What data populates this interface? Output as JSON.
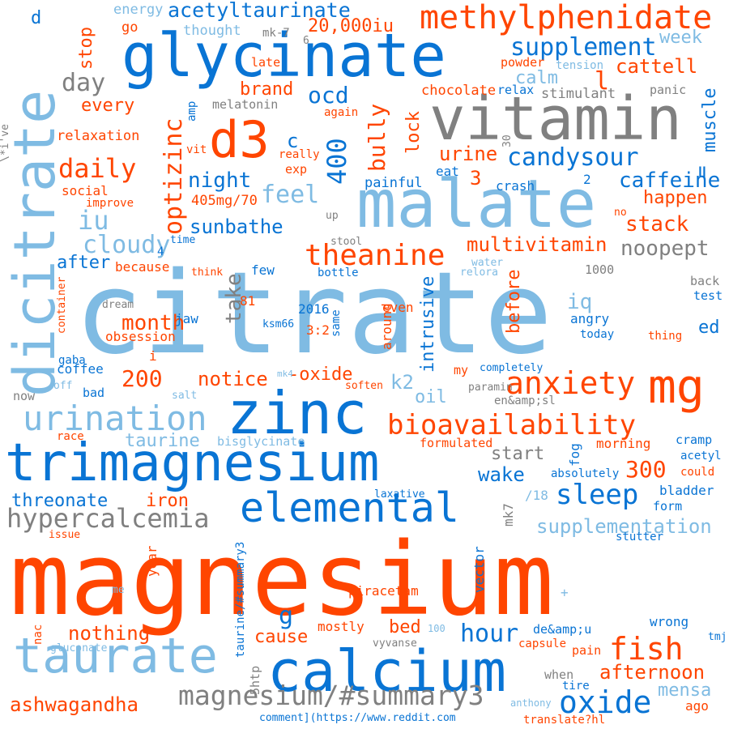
{
  "colors": {
    "background": "#ffffff",
    "orange": "#ff4500",
    "blue": "#0974d4",
    "light_blue": "#7fbbe3",
    "gray": "#808080"
  },
  "words": [
    {
      "text": "magnesium",
      "color": "orange"
    },
    {
      "text": "citrate",
      "color": "light_blue"
    },
    {
      "text": "glycinate",
      "color": "blue"
    },
    {
      "text": "vitamin",
      "color": "gray"
    },
    {
      "text": "malate",
      "color": "light_blue"
    },
    {
      "text": "dicitrate",
      "color": "light_blue"
    },
    {
      "text": "trimagnesium",
      "color": "blue"
    },
    {
      "text": "zinc",
      "color": "blue"
    },
    {
      "text": "calcium",
      "color": "blue"
    },
    {
      "text": "taurate",
      "color": "light_blue"
    },
    {
      "text": "elemental",
      "color": "blue"
    },
    {
      "text": "d3",
      "color": "orange"
    },
    {
      "text": "mg",
      "color": "orange"
    },
    {
      "text": "methylphenidate",
      "color": "orange"
    },
    {
      "text": "bioavailability",
      "color": "orange"
    },
    {
      "text": "urination",
      "color": "light_blue"
    },
    {
      "text": "anxiety",
      "color": "orange"
    },
    {
      "text": "hypercalcemia",
      "color": "gray"
    },
    {
      "text": "magnesium/#summary3",
      "color": "gray"
    },
    {
      "text": "supplement",
      "color": "blue"
    },
    {
      "text": "acetyltaurinate",
      "color": "blue"
    },
    {
      "text": "theanine",
      "color": "orange"
    },
    {
      "text": "candysour",
      "color": "blue"
    },
    {
      "text": "optizinc",
      "color": "orange"
    },
    {
      "text": "oxide",
      "color": "blue"
    },
    {
      "text": "fish",
      "color": "orange"
    },
    {
      "text": "sleep",
      "color": "blue"
    },
    {
      "text": "hour",
      "color": "blue"
    },
    {
      "text": "20,000iu",
      "color": "orange"
    },
    {
      "text": "day",
      "color": "gray"
    },
    {
      "text": "daily",
      "color": "orange"
    },
    {
      "text": "cloudy",
      "color": "light_blue"
    },
    {
      "text": "feel",
      "color": "light_blue"
    },
    {
      "text": "ocd",
      "color": "blue"
    },
    {
      "text": "400",
      "color": "blue"
    },
    {
      "text": "200",
      "color": "orange"
    },
    {
      "text": "300",
      "color": "orange"
    },
    {
      "text": "iu",
      "color": "light_blue"
    },
    {
      "text": "muscle",
      "color": "blue"
    },
    {
      "text": "caffeine",
      "color": "blue"
    },
    {
      "text": "cattell",
      "color": "orange"
    },
    {
      "text": "week",
      "color": "light_blue"
    },
    {
      "text": "stop",
      "color": "orange"
    },
    {
      "text": "brand",
      "color": "orange"
    },
    {
      "text": "calm",
      "color": "light_blue"
    },
    {
      "text": "bully",
      "color": "orange"
    },
    {
      "text": "lock",
      "color": "orange"
    },
    {
      "text": "urine",
      "color": "orange"
    },
    {
      "text": "multivitamin",
      "color": "orange"
    },
    {
      "text": "noopept",
      "color": "gray"
    },
    {
      "text": "stack",
      "color": "orange"
    },
    {
      "text": "happen",
      "color": "orange"
    },
    {
      "text": "night",
      "color": "blue"
    },
    {
      "text": "sunbathe",
      "color": "blue"
    },
    {
      "text": "after",
      "color": "blue"
    },
    {
      "text": "every",
      "color": "orange"
    },
    {
      "text": "month",
      "color": "orange"
    },
    {
      "text": "take",
      "color": "gray"
    },
    {
      "text": "notice",
      "color": "orange"
    },
    {
      "text": "-oxide",
      "color": "orange"
    },
    {
      "text": "intrusive",
      "color": "blue"
    },
    {
      "text": "before",
      "color": "orange"
    },
    {
      "text": "iq",
      "color": "light_blue"
    },
    {
      "text": "k2",
      "color": "light_blue"
    },
    {
      "text": "oil",
      "color": "light_blue"
    },
    {
      "text": "ed",
      "color": "blue"
    },
    {
      "text": "taurine",
      "color": "light_blue"
    },
    {
      "text": "start",
      "color": "gray"
    },
    {
      "text": "wake",
      "color": "blue"
    },
    {
      "text": "threonate",
      "color": "blue"
    },
    {
      "text": "iron",
      "color": "orange"
    },
    {
      "text": "supplementation",
      "color": "light_blue"
    },
    {
      "text": "nothing",
      "color": "orange"
    },
    {
      "text": "cause",
      "color": "orange"
    },
    {
      "text": "bed",
      "color": "orange"
    },
    {
      "text": "afternoon",
      "color": "orange"
    },
    {
      "text": "mensa",
      "color": "light_blue"
    },
    {
      "text": "ashwagandha",
      "color": "orange"
    },
    {
      "text": "g",
      "color": "blue"
    },
    {
      "text": "c",
      "color": "blue"
    },
    {
      "text": "d",
      "color": "blue"
    },
    {
      "text": "l",
      "color": "orange"
    },
    {
      "text": "3",
      "color": "orange"
    },
    {
      "text": "energy",
      "color": "light_blue"
    },
    {
      "text": "thought",
      "color": "light_blue"
    },
    {
      "text": "go",
      "color": "orange"
    },
    {
      "text": "mk-7",
      "color": "gray"
    },
    {
      "text": "late",
      "color": "orange"
    },
    {
      "text": "powder",
      "color": "orange"
    },
    {
      "text": "tension",
      "color": "light_blue"
    },
    {
      "text": "chocolate",
      "color": "orange"
    },
    {
      "text": "relax",
      "color": "blue"
    },
    {
      "text": "stimulant",
      "color": "gray"
    },
    {
      "text": "panic",
      "color": "gray"
    },
    {
      "text": "melatonin",
      "color": "gray"
    },
    {
      "text": "again",
      "color": "orange"
    },
    {
      "text": "amp",
      "color": "blue"
    },
    {
      "text": "relaxation",
      "color": "orange"
    },
    {
      "text": "vit",
      "color": "orange"
    },
    {
      "text": "really",
      "color": "orange"
    },
    {
      "text": "exp",
      "color": "orange"
    },
    {
      "text": "eat",
      "color": "blue"
    },
    {
      "text": "painful",
      "color": "blue"
    },
    {
      "text": "crash",
      "color": "blue"
    },
    {
      "text": "social",
      "color": "orange"
    },
    {
      "text": "improve",
      "color": "orange"
    },
    {
      "text": "405mg/70",
      "color": "orange"
    },
    {
      "text": "up",
      "color": "gray"
    },
    {
      "text": "no",
      "color": "orange"
    },
    {
      "text": "time",
      "color": "blue"
    },
    {
      "text": "few",
      "color": "blue"
    },
    {
      "text": "stool",
      "color": "gray"
    },
    {
      "text": "because",
      "color": "orange"
    },
    {
      "text": "think",
      "color": "orange"
    },
    {
      "text": "bottle",
      "color": "blue"
    },
    {
      "text": "water",
      "color": "light_blue"
    },
    {
      "text": "relora",
      "color": "light_blue"
    },
    {
      "text": "1000",
      "color": "gray"
    },
    {
      "text": "back",
      "color": "gray"
    },
    {
      "text": "test",
      "color": "blue"
    },
    {
      "text": "dream",
      "color": "gray"
    },
    {
      "text": "81",
      "color": "orange"
    },
    {
      "text": "2016",
      "color": "blue"
    },
    {
      "text": "ksm66",
      "color": "blue"
    },
    {
      "text": "3:2",
      "color": "orange"
    },
    {
      "text": "obsession",
      "color": "orange"
    },
    {
      "text": "jaw",
      "color": "blue"
    },
    {
      "text": "even",
      "color": "orange"
    },
    {
      "text": "angry",
      "color": "blue"
    },
    {
      "text": "today",
      "color": "blue"
    },
    {
      "text": "thing",
      "color": "orange"
    },
    {
      "text": "coffee",
      "color": "blue"
    },
    {
      "text": "mk4",
      "color": "light_blue"
    },
    {
      "text": "my",
      "color": "orange"
    },
    {
      "text": "completely",
      "color": "blue"
    },
    {
      "text": "gaba",
      "color": "blue"
    },
    {
      "text": "off",
      "color": "light_blue"
    },
    {
      "text": "bad",
      "color": "blue"
    },
    {
      "text": "salt",
      "color": "light_blue"
    },
    {
      "text": "soften",
      "color": "orange"
    },
    {
      "text": "now",
      "color": "gray"
    },
    {
      "text": "paramin",
      "color": "gray"
    },
    {
      "text": "en&amp;sl",
      "color": "gray"
    },
    {
      "text": "race",
      "color": "orange"
    },
    {
      "text": "formulated",
      "color": "orange"
    },
    {
      "text": "bisglycinate",
      "color": "light_blue"
    },
    {
      "text": "morning",
      "color": "orange"
    },
    {
      "text": "cramp",
      "color": "blue"
    },
    {
      "text": "absolutely",
      "color": "blue"
    },
    {
      "text": "could",
      "color": "orange"
    },
    {
      "text": "acetyl",
      "color": "blue"
    },
    {
      "text": "bladder",
      "color": "blue"
    },
    {
      "text": "/18",
      "color": "light_blue"
    },
    {
      "text": "form",
      "color": "blue"
    },
    {
      "text": "laxative",
      "color": "blue"
    },
    {
      "text": "issue",
      "color": "orange"
    },
    {
      "text": "stutter",
      "color": "blue"
    },
    {
      "text": "me",
      "color": "light_blue"
    },
    {
      "text": "piracetam",
      "color": "orange"
    },
    {
      "text": "+",
      "color": "light_blue"
    },
    {
      "text": "mostly",
      "color": "orange"
    },
    {
      "text": "wrong",
      "color": "blue"
    },
    {
      "text": "nac",
      "color": "orange"
    },
    {
      "text": "100",
      "color": "light_blue"
    },
    {
      "text": "de&amp;u",
      "color": "blue"
    },
    {
      "text": "tmj",
      "color": "blue"
    },
    {
      "text": "gluconate",
      "color": "light_blue"
    },
    {
      "text": "vyvanse",
      "color": "gray"
    },
    {
      "text": "capsule",
      "color": "orange"
    },
    {
      "text": "tire",
      "color": "blue"
    },
    {
      "text": "pain",
      "color": "orange"
    },
    {
      "text": "when",
      "color": "gray"
    },
    {
      "text": "ago",
      "color": "orange"
    },
    {
      "text": "anthony",
      "color": "light_blue"
    },
    {
      "text": "comment](https://www.reddit.com",
      "color": "blue"
    },
    {
      "text": "translate?hl",
      "color": "orange"
    },
    {
      "text": "year",
      "color": "orange"
    },
    {
      "text": "5htp",
      "color": "gray"
    },
    {
      "text": "taurine/#summary3",
      "color": "blue"
    },
    {
      "text": "vector",
      "color": "blue"
    },
    {
      "text": "mk7",
      "color": "gray"
    },
    {
      "text": "fog",
      "color": "blue"
    },
    {
      "text": "around",
      "color": "orange"
    },
    {
      "text": "same",
      "color": "blue"
    },
    {
      "text": "container",
      "color": "orange"
    },
    {
      "text": "\\*i've",
      "color": "gray"
    },
    {
      "text": "30",
      "color": "gray"
    },
    {
      "text": "2",
      "color": "blue"
    },
    {
      "text": "6",
      "color": "gray"
    },
    {
      "text": "4",
      "color": "blue"
    },
    {
      "text": "=",
      "color": "blue"
    },
    {
      "text": "i",
      "color": "orange"
    }
  ]
}
